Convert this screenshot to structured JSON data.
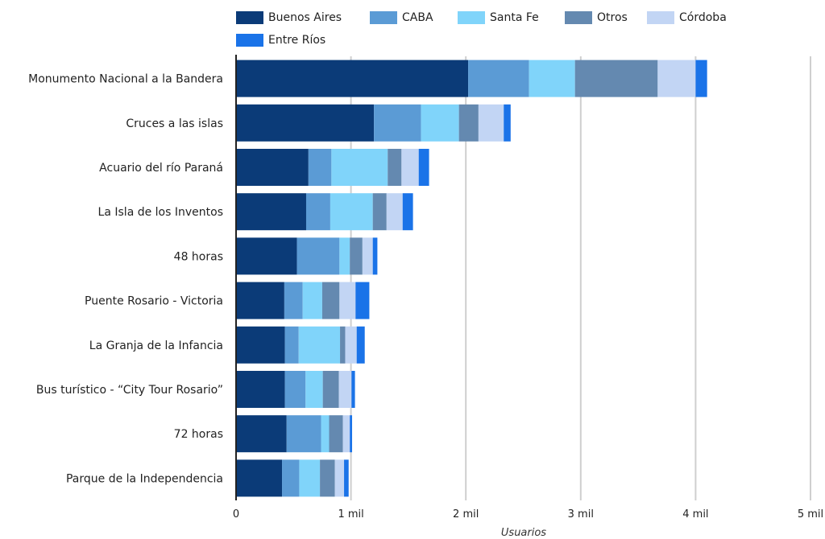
{
  "chart_data": {
    "type": "bar",
    "orientation": "horizontal",
    "stacked": true,
    "title": "",
    "xlabel": "Usuarios",
    "ylabel": "",
    "xlim": [
      0,
      5000
    ],
    "x_ticks": [
      0,
      1000,
      2000,
      3000,
      4000,
      5000
    ],
    "x_tick_labels": [
      "0",
      "1 mil",
      "2 mil",
      "3 mil",
      "4 mil",
      "5 mil"
    ],
    "grid": true,
    "legend_position": "top",
    "categories": [
      "Monumento Nacional a la Bandera",
      "Cruces a las islas",
      "Acuario del río Paraná",
      "La Isla de los Inventos",
      "48 horas",
      "Puente Rosario - Victoria",
      "La Granja de la Infancia",
      "Bus turístico - “City Tour Rosario”",
      "72 horas",
      "Parque de la Independencia"
    ],
    "series": [
      {
        "name": "Buenos Aires",
        "color": "#0b3b78",
        "values": [
          2020,
          1200,
          630,
          610,
          530,
          420,
          425,
          425,
          440,
          400
        ]
      },
      {
        "name": "CABA",
        "color": "#5b9bd5",
        "values": [
          530,
          410,
          200,
          210,
          370,
          160,
          120,
          180,
          300,
          150
        ]
      },
      {
        "name": "Santa Fe",
        "color": "#80d4fa",
        "values": [
          400,
          330,
          490,
          370,
          90,
          170,
          360,
          150,
          70,
          180
        ]
      },
      {
        "name": "Otros",
        "color": "#6489b0",
        "values": [
          720,
          170,
          120,
          120,
          110,
          150,
          45,
          140,
          120,
          130
        ]
      },
      {
        "name": "Córdoba",
        "color": "#c2d5f4",
        "values": [
          330,
          220,
          150,
          140,
          90,
          140,
          100,
          110,
          60,
          80
        ]
      },
      {
        "name": "Entre Ríos",
        "color": "#1a73e8",
        "values": [
          100,
          60,
          90,
          90,
          40,
          120,
          70,
          30,
          20,
          40
        ]
      }
    ]
  }
}
